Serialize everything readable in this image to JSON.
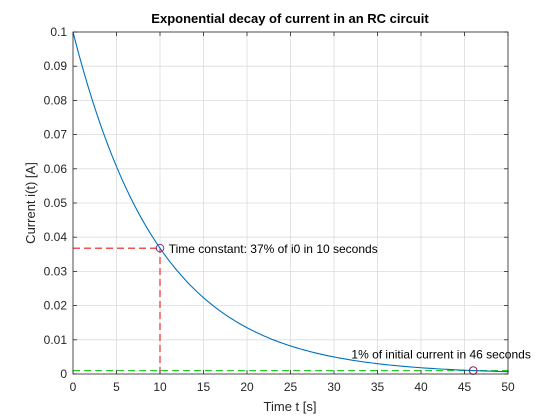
{
  "chart_data": {
    "type": "line",
    "title": "Exponential decay of current in an RC circuit",
    "xlabel": "Time t [s]",
    "ylabel": "Current i(t) [A]",
    "xlim": [
      0,
      50
    ],
    "ylim": [
      0,
      0.1
    ],
    "x_ticks": [
      0,
      5,
      10,
      15,
      20,
      25,
      30,
      35,
      40,
      45,
      50
    ],
    "y_ticks": [
      0,
      0.01,
      0.02,
      0.03,
      0.04,
      0.05,
      0.06,
      0.07,
      0.08,
      0.09,
      0.1
    ],
    "x_tick_labels": [
      "0",
      "5",
      "10",
      "15",
      "20",
      "25",
      "30",
      "35",
      "40",
      "45",
      "50"
    ],
    "y_tick_labels": [
      "0",
      "0.01",
      "0.02",
      "0.03",
      "0.04",
      "0.05",
      "0.06",
      "0.07",
      "0.08",
      "0.09",
      "0.1"
    ],
    "grid": true,
    "series": [
      {
        "color": "#0072bd",
        "x": [
          0,
          2,
          4,
          6,
          8,
          10,
          12,
          14,
          16,
          18,
          20,
          22,
          24,
          26,
          28,
          30,
          32,
          34,
          36,
          38,
          40,
          42,
          44,
          46,
          48,
          50
        ],
        "y": [
          0.1,
          0.0819,
          0.067,
          0.0549,
          0.0449,
          0.0368,
          0.0301,
          0.0247,
          0.0202,
          0.0165,
          0.0135,
          0.0111,
          0.0091,
          0.0074,
          0.0061,
          0.005,
          0.0041,
          0.0033,
          0.0027,
          0.0022,
          0.0018,
          0.0015,
          0.0012,
          0.001,
          0.0008,
          0.0007
        ]
      }
    ],
    "markers": [
      {
        "x": 10,
        "y": 0.0368,
        "color": "#7e2f8e"
      },
      {
        "x": 46,
        "y": 0.001,
        "color": "#a2142f"
      }
    ],
    "reference_lines": [
      {
        "x_from": 0,
        "x_to": 10,
        "y_from": 0.0368,
        "y_to": 0.0368,
        "color": "#ee1c1c"
      },
      {
        "x_from": 10,
        "x_to": 10,
        "y_from": 0,
        "y_to": 0.0368,
        "color": "#ee1c1c"
      },
      {
        "x_from": 0,
        "x_to": 50,
        "y_from": 0.001,
        "y_to": 0.001,
        "color": "#22cc22"
      }
    ],
    "annotations": [
      {
        "text": "Time constant: 37% of i0 in 10 seconds",
        "x": 11,
        "y": 0.0368
      },
      {
        "text": "1% of initial current in 46 seconds",
        "x": 32,
        "y": 0.006
      }
    ]
  }
}
